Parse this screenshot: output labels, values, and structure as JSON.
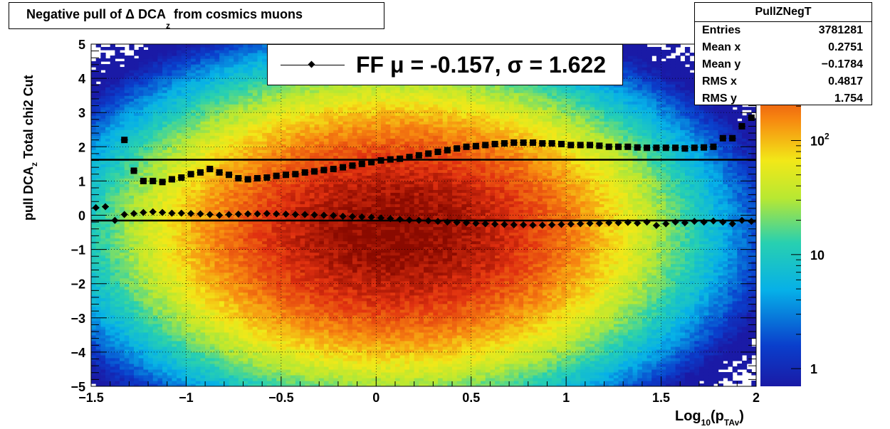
{
  "title": {
    "prefix": "Negative pull of Δ DCA",
    "sub": "z",
    "suffix": " from cosmics muons"
  },
  "stats": {
    "name": "PullZNegT",
    "rows": [
      {
        "key": "Entries",
        "value": "3781281"
      },
      {
        "key": "Mean x",
        "value": "0.2751"
      },
      {
        "key": "Mean y",
        "value": "−0.1784"
      },
      {
        "key": "RMS x",
        "value": "0.4817"
      },
      {
        "key": "RMS y",
        "value": "1.754"
      }
    ]
  },
  "legend": {
    "label": "FF μ = -0.157, σ =   1.622"
  },
  "yaxis_label": {
    "prefix": "pull DCA",
    "sub": "z",
    "suffix": "   Total chi2 Cut"
  },
  "xaxis_label": {
    "prefix": "Log",
    "sub": "10",
    "mid": "(p",
    "sub2": "TAv",
    "suffix": ")"
  },
  "chart_data": {
    "type": "heatmap",
    "title": "Negative pull of Δ DCA_z from cosmics muons",
    "xlabel": "Log10(p_TAv)",
    "ylabel": "pull DCA_z   Total chi2 Cut",
    "xlim": [
      -1.5,
      2
    ],
    "ylim": [
      -5,
      5
    ],
    "z_scale": "log",
    "zlim": [
      0.7,
      700
    ],
    "x_ticks": [
      "−1.5",
      "−1",
      "−0.5",
      "0",
      "0.5",
      "1",
      "1.5",
      "2"
    ],
    "y_ticks": [
      "−5",
      "−4",
      "−3",
      "−2",
      "−1",
      "0",
      "1",
      "2",
      "3",
      "4",
      "5"
    ],
    "colorbar_ticks": [
      {
        "label": "1",
        "value": 1
      },
      {
        "label": "10",
        "value": 10
      },
      {
        "label": "10",
        "sup": "2",
        "value": 100
      }
    ],
    "density": {
      "x_center": 0.1,
      "x_sigma": 0.55,
      "y_center": -0.5,
      "y_sigma": 1.75,
      "peak": 700
    },
    "grid": true,
    "lines": [
      {
        "name": "fit mean",
        "y": -0.157
      },
      {
        "name": "fit sigma",
        "y": 1.622
      }
    ],
    "series": [
      {
        "name": "mean",
        "marker": "diamond",
        "x": [
          -1.475,
          -1.425,
          -1.375,
          -1.325,
          -1.275,
          -1.225,
          -1.175,
          -1.125,
          -1.075,
          -1.025,
          -0.975,
          -0.925,
          -0.875,
          -0.825,
          -0.775,
          -0.725,
          -0.675,
          -0.625,
          -0.575,
          -0.525,
          -0.475,
          -0.425,
          -0.375,
          -0.325,
          -0.275,
          -0.225,
          -0.175,
          -0.125,
          -0.075,
          -0.025,
          0.025,
          0.075,
          0.125,
          0.175,
          0.225,
          0.275,
          0.325,
          0.375,
          0.425,
          0.475,
          0.525,
          0.575,
          0.625,
          0.675,
          0.725,
          0.775,
          0.825,
          0.875,
          0.925,
          0.975,
          1.025,
          1.075,
          1.125,
          1.175,
          1.225,
          1.275,
          1.325,
          1.375,
          1.425,
          1.475,
          1.525,
          1.575,
          1.625,
          1.675,
          1.725,
          1.775,
          1.825,
          1.875,
          1.925,
          1.975
        ],
        "y": [
          0.22,
          0.25,
          -0.15,
          0.02,
          0.05,
          0.08,
          0.1,
          0.08,
          0.06,
          0.06,
          0.05,
          0.04,
          0.02,
          0.0,
          0.02,
          0.03,
          0.04,
          0.04,
          0.05,
          0.04,
          0.03,
          0.02,
          0.02,
          0.01,
          0.0,
          -0.01,
          -0.03,
          -0.04,
          -0.05,
          -0.06,
          -0.08,
          -0.1,
          -0.12,
          -0.14,
          -0.15,
          -0.16,
          -0.18,
          -0.2,
          -0.21,
          -0.22,
          -0.24,
          -0.25,
          -0.26,
          -0.27,
          -0.28,
          -0.28,
          -0.29,
          -0.29,
          -0.28,
          -0.27,
          -0.26,
          -0.25,
          -0.24,
          -0.24,
          -0.22,
          -0.22,
          -0.21,
          -0.23,
          -0.2,
          -0.3,
          -0.25,
          -0.2,
          -0.22,
          -0.18,
          -0.2,
          -0.17,
          -0.2,
          -0.25,
          -0.15,
          -0.18
        ]
      },
      {
        "name": "sigma",
        "marker": "square",
        "x": [
          -1.325,
          -1.275,
          -1.225,
          -1.175,
          -1.125,
          -1.075,
          -1.025,
          -0.975,
          -0.925,
          -0.875,
          -0.825,
          -0.775,
          -0.725,
          -0.675,
          -0.625,
          -0.575,
          -0.525,
          -0.475,
          -0.425,
          -0.375,
          -0.325,
          -0.275,
          -0.225,
          -0.175,
          -0.125,
          -0.075,
          -0.025,
          0.025,
          0.075,
          0.125,
          0.175,
          0.225,
          0.275,
          0.325,
          0.375,
          0.425,
          0.475,
          0.525,
          0.575,
          0.625,
          0.675,
          0.725,
          0.775,
          0.825,
          0.875,
          0.925,
          0.975,
          1.025,
          1.075,
          1.125,
          1.175,
          1.225,
          1.275,
          1.325,
          1.375,
          1.425,
          1.475,
          1.525,
          1.575,
          1.625,
          1.675,
          1.725,
          1.775,
          1.825,
          1.875,
          1.925,
          1.975
        ],
        "y": [
          2.2,
          1.3,
          1.0,
          1.0,
          0.97,
          1.05,
          1.1,
          1.2,
          1.25,
          1.35,
          1.25,
          1.18,
          1.08,
          1.05,
          1.08,
          1.1,
          1.15,
          1.18,
          1.2,
          1.25,
          1.28,
          1.32,
          1.35,
          1.4,
          1.45,
          1.5,
          1.55,
          1.6,
          1.63,
          1.65,
          1.7,
          1.75,
          1.8,
          1.85,
          1.9,
          1.95,
          2.0,
          2.02,
          2.05,
          2.08,
          2.1,
          2.12,
          2.12,
          2.12,
          2.1,
          2.1,
          2.08,
          2.05,
          2.05,
          2.05,
          2.03,
          2.0,
          2.0,
          2.0,
          1.98,
          1.97,
          1.97,
          1.97,
          1.97,
          1.95,
          1.97,
          1.98,
          2.0,
          2.25,
          2.25,
          2.6,
          2.85
        ]
      }
    ]
  }
}
